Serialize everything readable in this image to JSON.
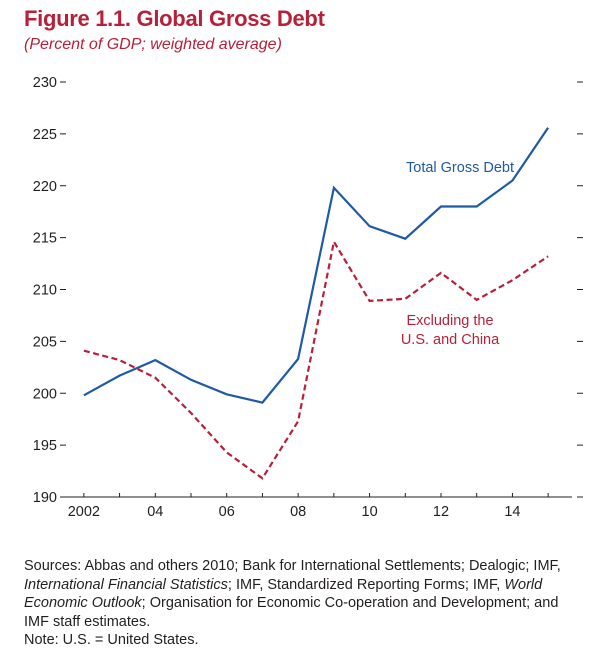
{
  "figure": {
    "title": "Figure 1.1. Global Gross Debt",
    "subtitle": "(Percent of GDP; weighted average)"
  },
  "chart_data": {
    "type": "line",
    "title": "Figure 1.1. Global Gross Debt",
    "subtitle": "(Percent of GDP; weighted average)",
    "x": [
      2002,
      2003,
      2004,
      2005,
      2006,
      2007,
      2008,
      2009,
      2010,
      2011,
      2012,
      2013,
      2014,
      2015
    ],
    "xlim": [
      2001.5,
      2015.5
    ],
    "x_ticks": [
      2002,
      2004,
      2006,
      2008,
      2010,
      2012,
      2014
    ],
    "x_tick_labels": [
      "2002",
      "04",
      "06",
      "08",
      "10",
      "12",
      "14"
    ],
    "ylim": [
      190,
      230
    ],
    "y_ticks": [
      190,
      195,
      200,
      205,
      210,
      215,
      220,
      225,
      230
    ],
    "y_tick_labels": [
      "190",
      "195",
      "200",
      "205",
      "210",
      "215",
      "220",
      "225",
      "230"
    ],
    "grid": false,
    "series": [
      {
        "name": "Total Gross Debt",
        "color": "#1f5aa6",
        "style": "solid",
        "values": [
          199.8,
          201.7,
          203.2,
          201.3,
          199.9,
          199.1,
          203.3,
          219.8,
          216.1,
          214.9,
          218.0,
          218.0,
          220.5,
          225.6
        ]
      },
      {
        "name": "Excluding the U.S. and China",
        "name_lines": [
          "Excluding the",
          "U.S. and China"
        ],
        "color": "#b8203a",
        "style": "dashed",
        "values": [
          204.1,
          203.2,
          201.5,
          198.1,
          194.3,
          191.8,
          197.3,
          214.6,
          208.9,
          209.1,
          211.6,
          209.0,
          210.9,
          213.2
        ]
      }
    ]
  },
  "notes": {
    "sources_prefix": "Sources: Abbas and others 2010; Bank for International Settlements; Dealogic; IMF,",
    "sources_ifs": "International Financial Statistics",
    "sources_mid": "; IMF, Standardized Reporting Forms; IMF,",
    "sources_weo": "World Economic Outlook",
    "sources_suffix": "; Organisation for Economic Co-operation and Development; and IMF staff estimates.",
    "note": "Note: U.S. = United States."
  }
}
